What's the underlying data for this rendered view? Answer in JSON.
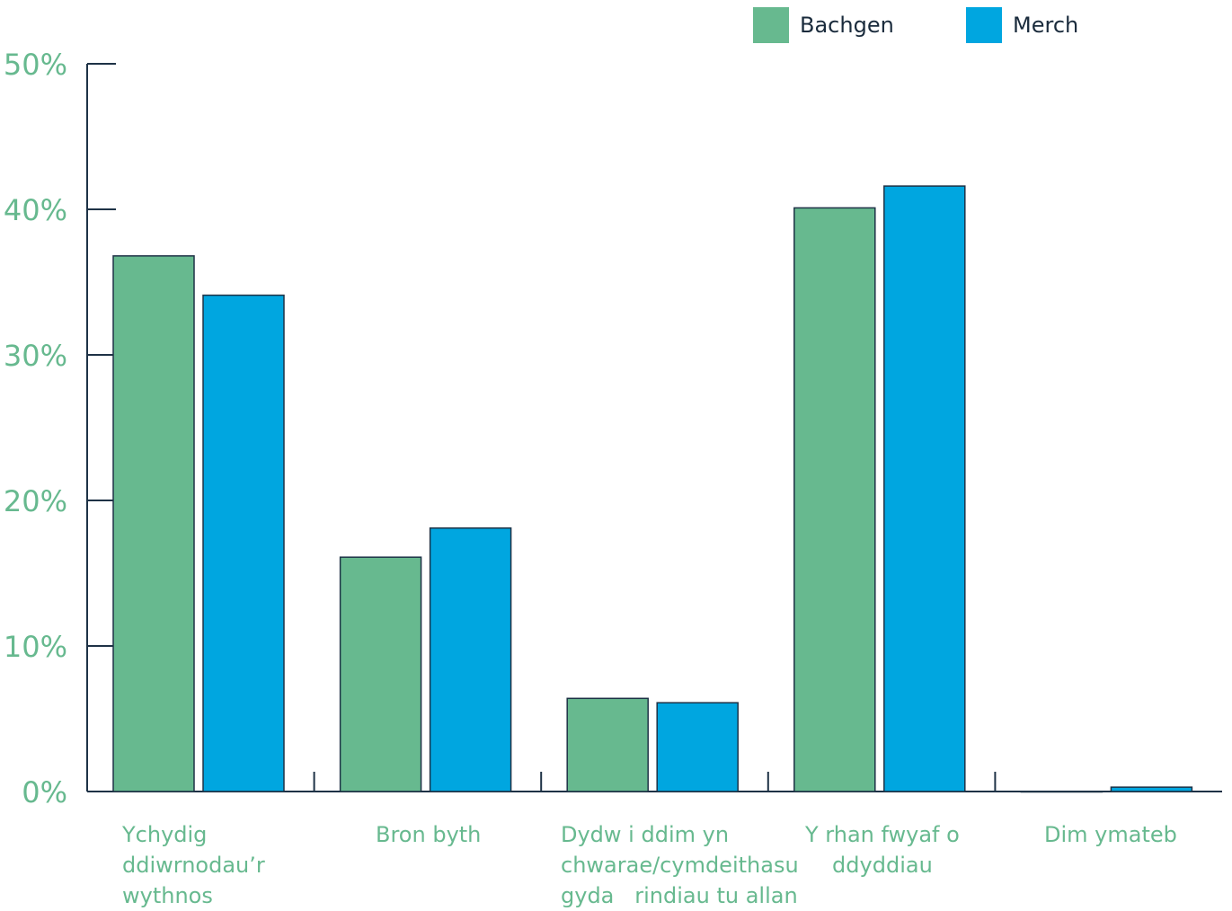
{
  "chart_data": {
    "type": "bar",
    "categories": [
      "Ychydig\nddiwrnodau’r\nwythnos",
      "Bron byth",
      "Dydw i ddim yn\nchwarae/cymdeithasu\ngyda   rindiau tu allan",
      "Y rhan fwyaf o\nddyddiau",
      "Dim ymateb"
    ],
    "series": [
      {
        "name": "Bachgen",
        "color": "#67b98f",
        "values": [
          36.8,
          16.1,
          6.4,
          40.1,
          0.0
        ]
      },
      {
        "name": "Merch",
        "color": "#00a6e0",
        "values": [
          34.1,
          18.1,
          6.1,
          41.6,
          0.3
        ]
      }
    ],
    "y_ticks": [
      "0%",
      "10%",
      "20%",
      "30%",
      "40%",
      "50%"
    ],
    "ylim": [
      0,
      50
    ],
    "grid": false,
    "legend_position": "top-right"
  }
}
